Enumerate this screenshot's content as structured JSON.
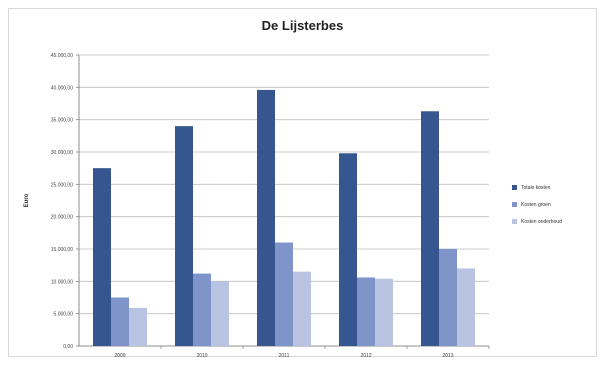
{
  "chart_data": {
    "type": "bar",
    "title": "De Lijsterbes",
    "ylabel": "Euro",
    "xlabel": "",
    "categories": [
      "2009",
      "2010",
      "2011",
      "2012",
      "2013"
    ],
    "ylim": [
      0,
      45000
    ],
    "yticks": [
      "0,00",
      "5.000,00",
      "10.000,00",
      "15.000,00",
      "20.000,00",
      "25.000,00",
      "30.000,00",
      "35.000,00",
      "40.000,00",
      "45.000,00"
    ],
    "grid": true,
    "legend_position": "right",
    "series": [
      {
        "name": "Totale kosten",
        "color": "#35568f",
        "values": [
          27500,
          34000,
          39600,
          29800,
          36300
        ]
      },
      {
        "name": "Kosten groen",
        "color": "#7f95c9",
        "values": [
          7500,
          11200,
          16000,
          10600,
          15000
        ]
      },
      {
        "name": "Kosten onderhoud",
        "color": "#b8c4e2",
        "values": [
          5900,
          10000,
          11500,
          10400,
          12000
        ]
      }
    ]
  }
}
